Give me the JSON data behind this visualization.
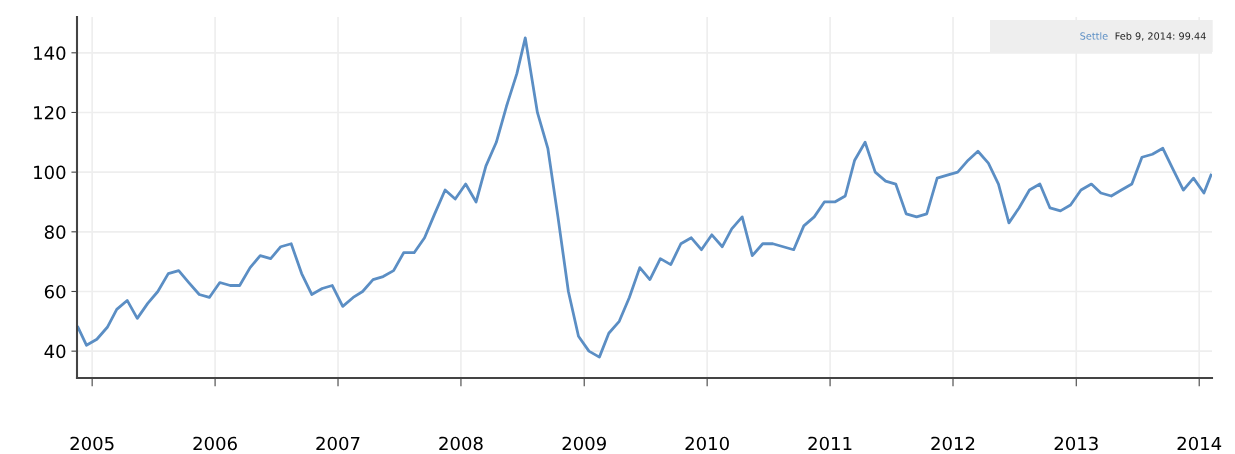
{
  "chart_data": {
    "type": "line",
    "x": [
      "2004-11-20",
      "2004-12-15",
      "2005-01-15",
      "2005-02-15",
      "2005-03-15",
      "2005-04-15",
      "2005-05-15",
      "2005-06-15",
      "2005-07-15",
      "2005-08-15",
      "2005-09-15",
      "2005-10-15",
      "2005-11-15",
      "2005-12-15",
      "2006-01-15",
      "2006-02-15",
      "2006-03-15",
      "2006-04-15",
      "2006-05-15",
      "2006-06-15",
      "2006-07-15",
      "2006-08-15",
      "2006-09-15",
      "2006-10-15",
      "2006-11-15",
      "2006-12-15",
      "2007-01-15",
      "2007-02-15",
      "2007-03-15",
      "2007-04-15",
      "2007-05-15",
      "2007-06-15",
      "2007-07-15",
      "2007-08-15",
      "2007-09-15",
      "2007-10-15",
      "2007-11-15",
      "2007-12-15",
      "2008-01-15",
      "2008-02-15",
      "2008-03-15",
      "2008-04-15",
      "2008-05-15",
      "2008-06-15",
      "2008-07-10",
      "2008-08-15",
      "2008-09-15",
      "2008-10-15",
      "2008-11-15",
      "2008-12-15",
      "2009-01-15",
      "2009-02-15",
      "2009-03-15",
      "2009-04-15",
      "2009-05-15",
      "2009-06-15",
      "2009-07-15",
      "2009-08-15",
      "2009-09-15",
      "2009-10-15",
      "2009-11-15",
      "2009-12-15",
      "2010-01-15",
      "2010-02-15",
      "2010-03-15",
      "2010-04-15",
      "2010-05-15",
      "2010-06-15",
      "2010-07-15",
      "2010-08-15",
      "2010-09-15",
      "2010-10-15",
      "2010-11-15",
      "2010-12-15",
      "2011-01-15",
      "2011-02-15",
      "2011-03-15",
      "2011-04-15",
      "2011-05-15",
      "2011-06-15",
      "2011-07-15",
      "2011-08-15",
      "2011-09-15",
      "2011-10-15",
      "2011-11-15",
      "2011-12-15",
      "2012-01-15",
      "2012-02-15",
      "2012-03-15",
      "2012-04-15",
      "2012-05-15",
      "2012-06-15",
      "2012-07-15",
      "2012-08-15",
      "2012-09-15",
      "2012-10-15",
      "2012-11-15",
      "2012-12-15",
      "2013-01-15",
      "2013-02-15",
      "2013-03-15",
      "2013-04-15",
      "2013-05-15",
      "2013-06-15",
      "2013-07-15",
      "2013-08-15",
      "2013-09-15",
      "2013-10-15",
      "2013-11-15",
      "2013-12-15",
      "2014-01-15",
      "2014-02-05"
    ],
    "series": [
      {
        "color": "#5b8ec4",
        "values": [
          48,
          42,
          44,
          48,
          54,
          57,
          51,
          56,
          60,
          66,
          67,
          63,
          59,
          58,
          63,
          62,
          62,
          68,
          72,
          71,
          75,
          76,
          66,
          59,
          61,
          62,
          55,
          58,
          60,
          64,
          65,
          67,
          73,
          73,
          78,
          86,
          94,
          91,
          96,
          90,
          102,
          110,
          122,
          133,
          145,
          120,
          108,
          85,
          60,
          45,
          40,
          38,
          46,
          50,
          58,
          68,
          64,
          71,
          69,
          76,
          78,
          74,
          79,
          75,
          81,
          85,
          72,
          76,
          76,
          75,
          74,
          82,
          85,
          90,
          90,
          92,
          104,
          110,
          100,
          97,
          96,
          86,
          85,
          86,
          98,
          99,
          100,
          104,
          107,
          103,
          96,
          83,
          88,
          94,
          96,
          88,
          87,
          89,
          94,
          96,
          93,
          92,
          94,
          96,
          105,
          106,
          108,
          101,
          94,
          98,
          93,
          99
        ]
      }
    ],
    "xlim": [
      "2004-11-17",
      "2014-02-08"
    ],
    "xticks": [
      {
        "value": "2005-01-01",
        "label": "2005"
      },
      {
        "value": "2006-01-01",
        "label": "2006"
      },
      {
        "value": "2007-01-01",
        "label": "2007"
      },
      {
        "value": "2008-01-01",
        "label": "2008"
      },
      {
        "value": "2009-01-01",
        "label": "2009"
      },
      {
        "value": "2010-01-01",
        "label": "2010"
      },
      {
        "value": "2011-01-01",
        "label": "2011"
      },
      {
        "value": "2012-01-01",
        "label": "2012"
      },
      {
        "value": "2013-01-01",
        "label": "2013"
      },
      {
        "value": "2014-01-01",
        "label": "2014"
      }
    ],
    "ylim": [
      31,
      152
    ],
    "yticks": [
      40,
      60,
      80,
      100,
      120,
      140
    ],
    "grid": true,
    "annotations": [
      "Settle",
      "Feb 9, 2014: 99.44"
    ]
  }
}
